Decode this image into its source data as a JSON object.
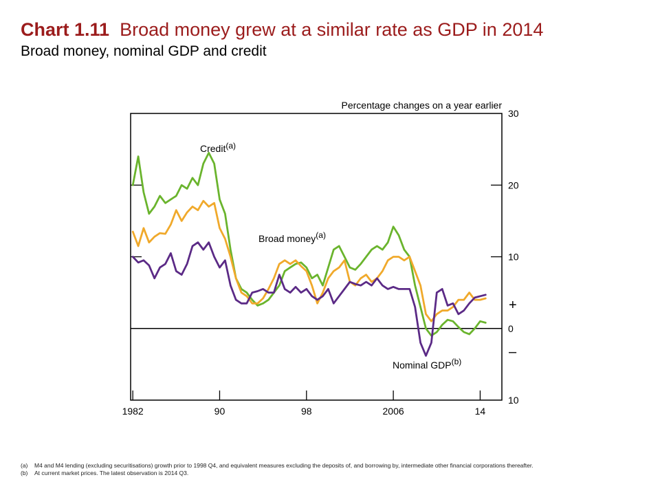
{
  "header": {
    "title_number": "Chart 1.11",
    "title_text": "Broad money grew at a similar rate as GDP in 2014",
    "subtitle": "Broad money, nominal GDP and credit"
  },
  "chart_data": {
    "type": "line",
    "title": "Broad money grew at a similar rate as GDP in 2014",
    "subtitle": "Broad money, nominal GDP and credit",
    "ylabel": "Percentage changes on a year earlier",
    "ylim": [
      -10,
      30
    ],
    "yticks": [
      {
        "value": 30,
        "label": "30"
      },
      {
        "value": 20,
        "label": "20"
      },
      {
        "value": 10,
        "label": "10"
      },
      {
        "value": 0,
        "label": "0"
      },
      {
        "value": -10,
        "label": "10"
      }
    ],
    "sign_labels": {
      "plus": "+",
      "minus": "–"
    },
    "xlim": [
      1981.8,
      2016.0
    ],
    "xticks": [
      {
        "value": 1982,
        "label": "1982"
      },
      {
        "value": 1990,
        "label": "90"
      },
      {
        "value": 1998,
        "label": "98"
      },
      {
        "value": 2006,
        "label": "2006"
      },
      {
        "value": 2014,
        "label": "14"
      }
    ],
    "grid": false,
    "series": [
      {
        "name": "Credit",
        "note": "(a)",
        "color": "#6ab42d",
        "points": [
          [
            1982.0,
            20
          ],
          [
            1982.5,
            24
          ],
          [
            1983.0,
            19
          ],
          [
            1983.5,
            16
          ],
          [
            1984.0,
            17
          ],
          [
            1984.5,
            18.5
          ],
          [
            1985.0,
            17.5
          ],
          [
            1985.5,
            18
          ],
          [
            1986.0,
            18.5
          ],
          [
            1986.5,
            20
          ],
          [
            1987.0,
            19.5
          ],
          [
            1987.5,
            21
          ],
          [
            1988.0,
            20
          ],
          [
            1988.5,
            23
          ],
          [
            1989.0,
            24.5
          ],
          [
            1989.5,
            23
          ],
          [
            1990.0,
            18
          ],
          [
            1990.5,
            16
          ],
          [
            1991.0,
            11
          ],
          [
            1991.5,
            7
          ],
          [
            1992.0,
            5.5
          ],
          [
            1992.5,
            5
          ],
          [
            1993.0,
            4
          ],
          [
            1993.5,
            3.2
          ],
          [
            1994.0,
            3.5
          ],
          [
            1994.5,
            4
          ],
          [
            1995.0,
            5
          ],
          [
            1995.5,
            6
          ],
          [
            1996.0,
            8
          ],
          [
            1996.5,
            8.5
          ],
          [
            1997.0,
            9
          ],
          [
            1997.5,
            9.2
          ],
          [
            1998.0,
            8.5
          ],
          [
            1998.5,
            7
          ],
          [
            1999.0,
            7.5
          ],
          [
            1999.5,
            6
          ],
          [
            2000.0,
            8.5
          ],
          [
            2000.5,
            11
          ],
          [
            2001.0,
            11.5
          ],
          [
            2001.5,
            10
          ],
          [
            2002.0,
            8.5
          ],
          [
            2002.5,
            8.2
          ],
          [
            2003.0,
            9
          ],
          [
            2003.5,
            10
          ],
          [
            2004.0,
            11
          ],
          [
            2004.5,
            11.5
          ],
          [
            2005.0,
            11
          ],
          [
            2005.5,
            12
          ],
          [
            2006.0,
            14.2
          ],
          [
            2006.5,
            13
          ],
          [
            2007.0,
            11
          ],
          [
            2007.5,
            10
          ],
          [
            2008.0,
            6
          ],
          [
            2008.5,
            3
          ],
          [
            2009.0,
            0
          ],
          [
            2009.5,
            -1
          ],
          [
            2010.0,
            -0.5
          ],
          [
            2010.5,
            0.5
          ],
          [
            2011.0,
            1.2
          ],
          [
            2011.5,
            1
          ],
          [
            2012.0,
            0.2
          ],
          [
            2012.5,
            -0.5
          ],
          [
            2013.0,
            -0.8
          ],
          [
            2013.5,
            0
          ],
          [
            2014.0,
            1
          ],
          [
            2014.5,
            0.8
          ]
        ]
      },
      {
        "name": "Broad money",
        "note": "(a)",
        "color": "#f0a92b",
        "points": [
          [
            1982.0,
            13.5
          ],
          [
            1982.5,
            11.5
          ],
          [
            1983.0,
            14
          ],
          [
            1983.5,
            12
          ],
          [
            1984.0,
            12.8
          ],
          [
            1984.5,
            13.3
          ],
          [
            1985.0,
            13.2
          ],
          [
            1985.5,
            14.5
          ],
          [
            1986.0,
            16.5
          ],
          [
            1986.5,
            15
          ],
          [
            1987.0,
            16.2
          ],
          [
            1987.5,
            17
          ],
          [
            1988.0,
            16.5
          ],
          [
            1988.5,
            17.8
          ],
          [
            1989.0,
            17
          ],
          [
            1989.5,
            17.5
          ],
          [
            1990.0,
            14
          ],
          [
            1990.5,
            12.5
          ],
          [
            1991.0,
            10
          ],
          [
            1991.5,
            7
          ],
          [
            1992.0,
            5
          ],
          [
            1992.5,
            4.5
          ],
          [
            1993.0,
            3.5
          ],
          [
            1993.5,
            3.5
          ],
          [
            1994.0,
            4.2
          ],
          [
            1994.5,
            5.5
          ],
          [
            1995.0,
            7
          ],
          [
            1995.5,
            9
          ],
          [
            1996.0,
            9.5
          ],
          [
            1996.5,
            9
          ],
          [
            1997.0,
            9.5
          ],
          [
            1997.5,
            8.7
          ],
          [
            1998.0,
            8
          ],
          [
            1998.5,
            6
          ],
          [
            1999.0,
            3.5
          ],
          [
            1999.5,
            5
          ],
          [
            2000.0,
            7
          ],
          [
            2000.5,
            8
          ],
          [
            2001.0,
            8.5
          ],
          [
            2001.5,
            9.5
          ],
          [
            2002.0,
            6.5
          ],
          [
            2002.5,
            6
          ],
          [
            2003.0,
            7
          ],
          [
            2003.5,
            7.5
          ],
          [
            2004.0,
            6.5
          ],
          [
            2004.5,
            7
          ],
          [
            2005.0,
            8
          ],
          [
            2005.5,
            9.5
          ],
          [
            2006.0,
            10
          ],
          [
            2006.5,
            10
          ],
          [
            2007.0,
            9.5
          ],
          [
            2007.5,
            10
          ],
          [
            2008.0,
            8
          ],
          [
            2008.5,
            6
          ],
          [
            2009.0,
            2
          ],
          [
            2009.5,
            1
          ],
          [
            2010.0,
            2
          ],
          [
            2010.5,
            2.5
          ],
          [
            2011.0,
            2.5
          ],
          [
            2011.5,
            3
          ],
          [
            2012.0,
            4
          ],
          [
            2012.5,
            4
          ],
          [
            2013.0,
            5
          ],
          [
            2013.5,
            4
          ],
          [
            2014.0,
            4
          ],
          [
            2014.5,
            4.2
          ]
        ]
      },
      {
        "name": "Nominal GDP",
        "note": "(b)",
        "color": "#5b2a86",
        "points": [
          [
            1982.0,
            10
          ],
          [
            1982.5,
            9.2
          ],
          [
            1983.0,
            9.5
          ],
          [
            1983.5,
            8.8
          ],
          [
            1984.0,
            7
          ],
          [
            1984.5,
            8.5
          ],
          [
            1985.0,
            9
          ],
          [
            1985.5,
            10.5
          ],
          [
            1986.0,
            8
          ],
          [
            1986.5,
            7.5
          ],
          [
            1987.0,
            9
          ],
          [
            1987.5,
            11.5
          ],
          [
            1988.0,
            12
          ],
          [
            1988.5,
            11
          ],
          [
            1989.0,
            12
          ],
          [
            1989.5,
            10
          ],
          [
            1990.0,
            8.5
          ],
          [
            1990.5,
            9.5
          ],
          [
            1991.0,
            6
          ],
          [
            1991.5,
            4
          ],
          [
            1992.0,
            3.5
          ],
          [
            1992.5,
            3.5
          ],
          [
            1993.0,
            5
          ],
          [
            1993.5,
            5.2
          ],
          [
            1994.0,
            5.5
          ],
          [
            1994.5,
            5
          ],
          [
            1995.0,
            5
          ],
          [
            1995.5,
            7.5
          ],
          [
            1996.0,
            5.5
          ],
          [
            1996.5,
            5
          ],
          [
            1997.0,
            5.8
          ],
          [
            1997.5,
            5
          ],
          [
            1998.0,
            5.5
          ],
          [
            1998.5,
            4.5
          ],
          [
            1999.0,
            4
          ],
          [
            1999.5,
            4.5
          ],
          [
            2000.0,
            5.5
          ],
          [
            2000.5,
            3.5
          ],
          [
            2001.0,
            4.5
          ],
          [
            2001.5,
            5.5
          ],
          [
            2002.0,
            6.5
          ],
          [
            2002.5,
            6.2
          ],
          [
            2003.0,
            6
          ],
          [
            2003.5,
            6.5
          ],
          [
            2004.0,
            6
          ],
          [
            2004.5,
            7
          ],
          [
            2005.0,
            6
          ],
          [
            2005.5,
            5.5
          ],
          [
            2006.0,
            5.8
          ],
          [
            2006.5,
            5.5
          ],
          [
            2007.0,
            5.5
          ],
          [
            2007.5,
            5.5
          ],
          [
            2008.0,
            3
          ],
          [
            2008.5,
            -2
          ],
          [
            2009.0,
            -3.8
          ],
          [
            2009.5,
            -2
          ],
          [
            2010.0,
            5
          ],
          [
            2010.5,
            5.5
          ],
          [
            2011.0,
            3.2
          ],
          [
            2011.5,
            3.5
          ],
          [
            2012.0,
            2
          ],
          [
            2012.5,
            2.5
          ],
          [
            2013.0,
            3.5
          ],
          [
            2013.5,
            4.3
          ],
          [
            2014.0,
            4.5
          ],
          [
            2014.5,
            4.7
          ]
        ]
      }
    ],
    "labels": {
      "credit": {
        "name": "Credit",
        "note": "(a)"
      },
      "broad_money": {
        "name": "Broad money",
        "note": "(a)"
      },
      "nominal_gdp": {
        "name": "Nominal GDP",
        "note": "(b)"
      }
    }
  },
  "footnotes": [
    {
      "marker": "(a)",
      "text": "M4 and M4 lending (excluding securitisations) growth prior to 1998 Q4, and equivalent measures excluding the deposits of, and borrowing by, intermediate other financial corporations thereafter."
    },
    {
      "marker": "(b)",
      "text": "At current market prices.  The latest observation is 2014 Q3."
    }
  ]
}
